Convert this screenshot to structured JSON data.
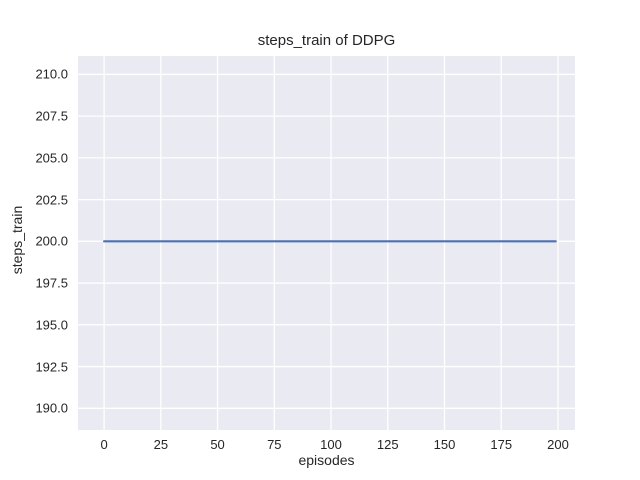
{
  "figure": {
    "background": "#ffffff",
    "text_color": "#262626"
  },
  "chart_data": {
    "type": "line",
    "title": "steps_train of DDPG",
    "xlabel": "episodes",
    "ylabel": "steps_train",
    "x_tick_labels": [
      "0",
      "25",
      "50",
      "75",
      "100",
      "125",
      "150",
      "175",
      "200"
    ],
    "y_tick_labels": [
      "190.0",
      "192.5",
      "195.0",
      "197.5",
      "200.0",
      "202.5",
      "205.0",
      "207.5",
      "210.0"
    ],
    "xlim": [
      -11.5,
      207.5
    ],
    "ylim": [
      188.7,
      211.1
    ],
    "grid": true,
    "legend": false,
    "plot_background": "#eaeaf2",
    "grid_color": "#ffffff",
    "series": [
      {
        "name": "steps_train",
        "color": "#4c72b0",
        "x": [
          0,
          199
        ],
        "y": [
          200,
          200
        ]
      }
    ]
  }
}
